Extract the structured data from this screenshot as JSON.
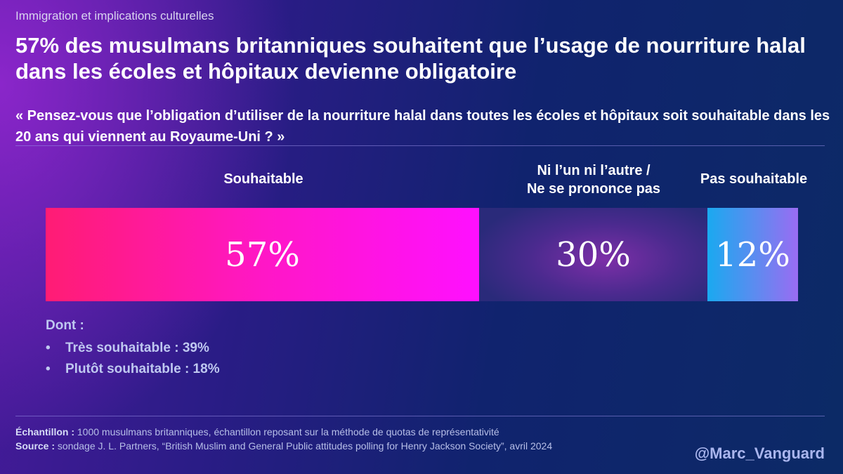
{
  "header": {
    "kicker": "Immigration et implications culturelles",
    "title": "57% des musulmans britanniques souhaitent que l’usage de nourriture halal dans les écoles et hôpitaux devienne obligatoire",
    "question": "« Pensez-vous que l’obligation d’utiliser de la nourriture halal dans toutes les écoles et hôpitaux soit souhaitable dans les 20 ans qui viennent au Royaume-Uni ? »"
  },
  "chart_data": {
    "type": "bar",
    "orientation": "stacked-horizontal",
    "categories": [
      "Souhaitable",
      "Ni l’un ni l’autre / Ne se prononce pas",
      "Pas souhaitable"
    ],
    "values": [
      57,
      30,
      12
    ],
    "value_labels": [
      "57%",
      "30%",
      "12%"
    ],
    "category_labels": [
      [
        "Souhaitable"
      ],
      [
        "Ni l’un ni l’autre /",
        "Ne se prononce pas"
      ],
      [
        "Pas souhaitable"
      ]
    ],
    "colors": [
      "#ff17c6",
      "#4a2a8e",
      "#5f8af0"
    ],
    "title": "",
    "xlabel": "",
    "ylabel": ""
  },
  "breakdown": {
    "heading": "Dont :",
    "bullet": "•",
    "items": [
      "Très souhaitable : 39%",
      "Plutôt souhaitable : 18%"
    ]
  },
  "footer": {
    "sample_label": "Échantillon :",
    "sample_text": " 1000 musulmans britanniques, échantillon reposant sur la méthode de quotas de représentativité",
    "source_label": "Source :",
    "source_text": " sondage J. L. Partners, “British Muslim and General Public attitudes polling for Henry Jackson Society”, avril 2024",
    "handle": "@Marc_Vanguard"
  }
}
